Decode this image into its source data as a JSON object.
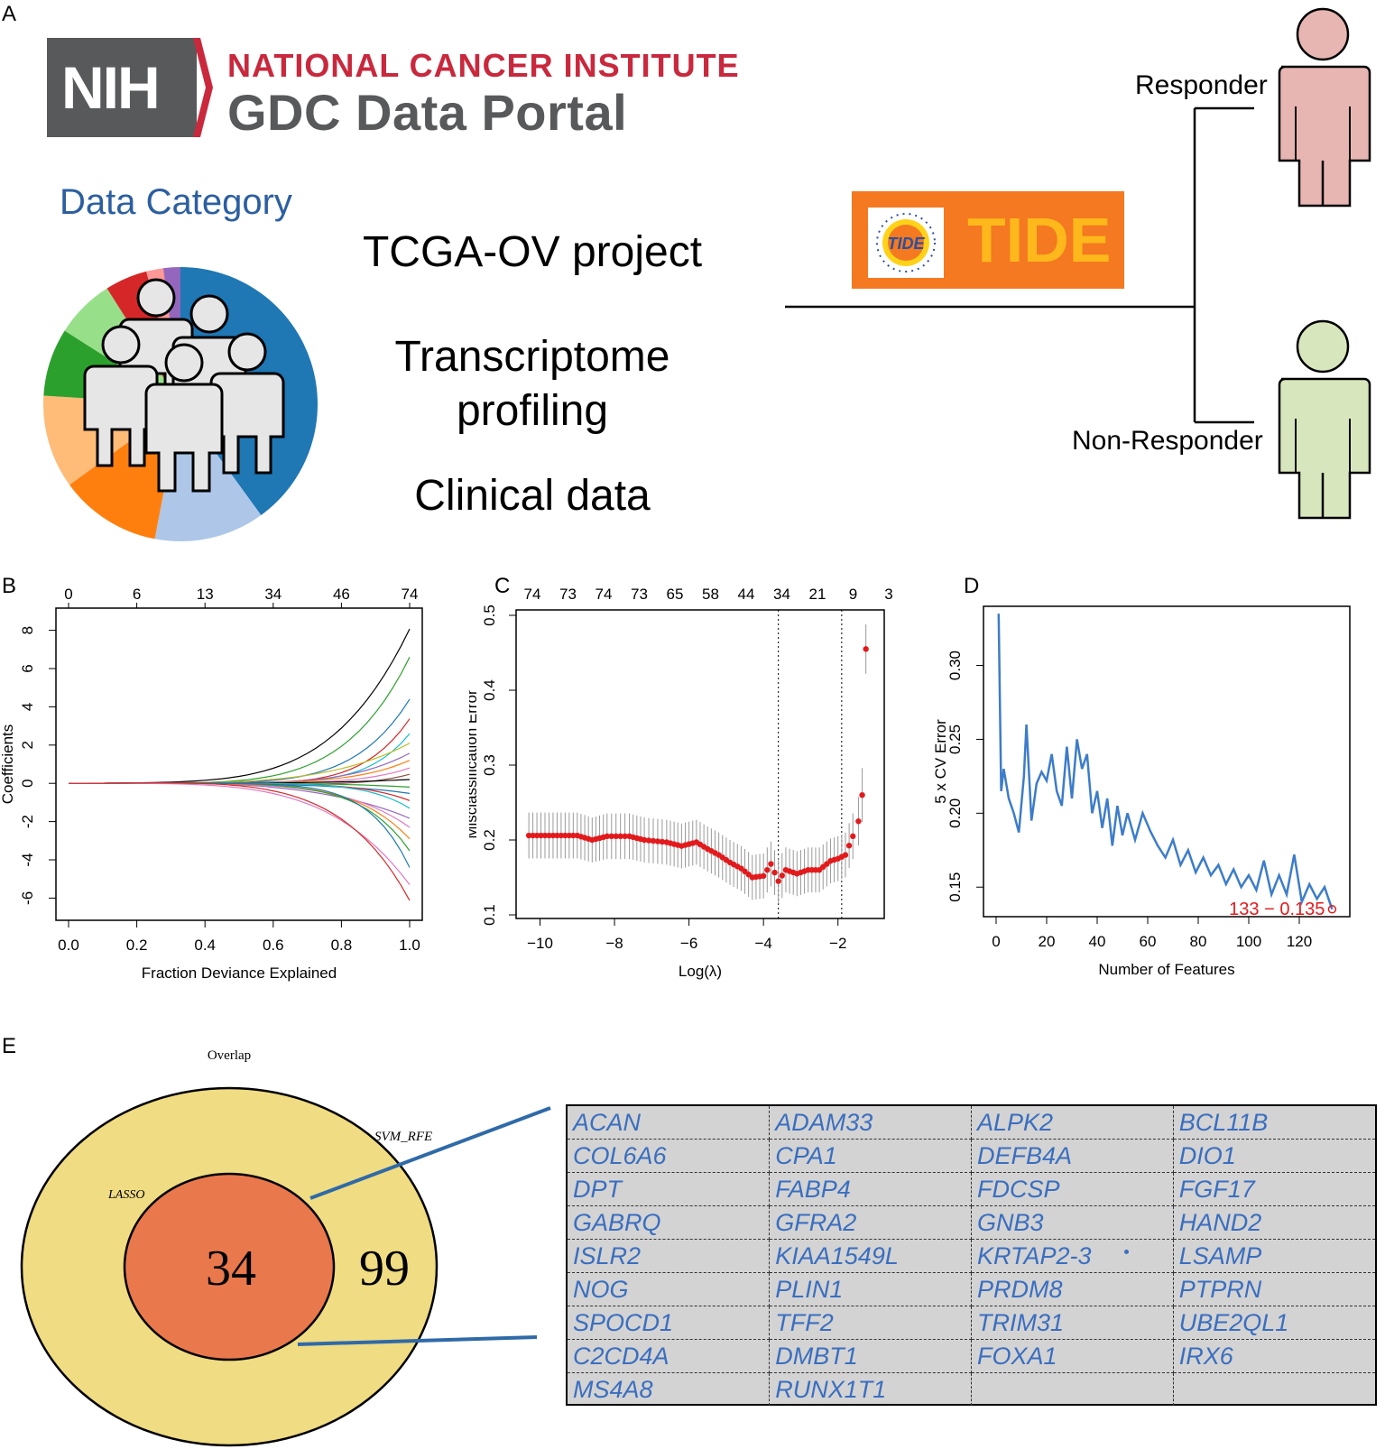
{
  "panels": {
    "a": "A",
    "b": "B",
    "c": "C",
    "d": "D",
    "e": "E"
  },
  "nih": {
    "box_text": "NIH",
    "line1": "NATIONAL CANCER INSTITUTE",
    "line2": "GDC Data Portal"
  },
  "data_category": "Data Category",
  "pie_colors": [
    "#1f77b4",
    "#aec7e8",
    "#ff7f0e",
    "#ffbb78",
    "#2ca02c",
    "#98df8a",
    "#d62728",
    "#ff9896",
    "#9467bd"
  ],
  "center": {
    "t1": "TCGA-OV project",
    "t2a": "Transcriptome",
    "t2b": "profiling",
    "t3": "Clinical data"
  },
  "tide": {
    "logo": "TIDE",
    "word": "TIDE"
  },
  "responders": {
    "responder": "Responder",
    "non_responder": "Non-Responder"
  },
  "chart_data": [
    {
      "type": "line",
      "panel": "B",
      "xlabel": "Fraction Deviance Explained",
      "ylabel": "Coefficients",
      "x_ticks": [
        "0.0",
        "0.2",
        "0.4",
        "0.6",
        "0.8",
        "1.0"
      ],
      "y_ticks": [
        "-6",
        "-4",
        "-2",
        "0",
        "2",
        "4",
        "6",
        "8"
      ],
      "top_ticks": [
        "0",
        "6",
        "13",
        "34",
        "46",
        "74"
      ],
      "xlim": [
        0,
        1
      ],
      "ylim": [
        -6.5,
        8.5
      ],
      "series_endpoints": [
        8.1,
        6.6,
        4.4,
        3.4,
        2.6,
        2.1,
        1.6,
        1.2,
        0.8,
        0.5,
        0.2,
        -0.2,
        -0.5,
        -0.9,
        -1.3,
        -1.8,
        -2.3,
        -2.9,
        -3.5,
        -4.4,
        -5.3,
        -6.1
      ]
    },
    {
      "type": "scatter",
      "panel": "C",
      "xlabel": "Log(λ)",
      "ylabel": "Misclassification Error",
      "x_ticks": [
        "−10",
        "−8",
        "−6",
        "−4",
        "−2"
      ],
      "y_ticks": [
        "0.1",
        "0.2",
        "0.3",
        "0.4",
        "0.5"
      ],
      "top_ticks": [
        "74",
        "73",
        "74",
        "73",
        "65",
        "58",
        "44",
        "34",
        "21",
        "9",
        "3"
      ],
      "xlim": [
        -10.4,
        -1
      ],
      "ylim": [
        0.1,
        0.5
      ],
      "vlines": [
        -3.6,
        -1.9
      ],
      "points": [
        [
          -10.3,
          0.206
        ],
        [
          -9.0,
          0.206
        ],
        [
          -8.6,
          0.2
        ],
        [
          -8.2,
          0.205
        ],
        [
          -7.6,
          0.205
        ],
        [
          -7.2,
          0.2
        ],
        [
          -6.6,
          0.197
        ],
        [
          -6.2,
          0.192
        ],
        [
          -5.8,
          0.197
        ],
        [
          -5.5,
          0.188
        ],
        [
          -5.2,
          0.18
        ],
        [
          -4.9,
          0.17
        ],
        [
          -4.6,
          0.162
        ],
        [
          -4.3,
          0.15
        ],
        [
          -4.0,
          0.152
        ],
        [
          -3.8,
          0.168
        ],
        [
          -3.6,
          0.145
        ],
        [
          -3.4,
          0.16
        ],
        [
          -3.1,
          0.155
        ],
        [
          -2.8,
          0.16
        ],
        [
          -2.5,
          0.16
        ],
        [
          -2.2,
          0.172
        ],
        [
          -2.0,
          0.175
        ],
        [
          -1.8,
          0.18
        ],
        [
          -1.6,
          0.205
        ],
        [
          -1.45,
          0.225
        ],
        [
          -1.35,
          0.26
        ],
        [
          -1.25,
          0.455
        ]
      ]
    },
    {
      "type": "line",
      "panel": "D",
      "xlabel": "Number of Features",
      "ylabel": "5 x CV Error",
      "x_ticks": [
        "0",
        "20",
        "40",
        "60",
        "80",
        "100",
        "120"
      ],
      "y_ticks": [
        "0.15",
        "0.20",
        "0.25",
        "0.30"
      ],
      "xlim": [
        -5,
        140
      ],
      "ylim": [
        0.13,
        0.34
      ],
      "annotation": "133 − 0.135",
      "x": [
        1,
        2,
        3,
        5,
        7,
        9,
        11,
        12,
        14,
        16,
        18,
        20,
        22,
        24,
        26,
        28,
        30,
        32,
        34,
        36,
        38,
        40,
        42,
        44,
        46,
        48,
        50,
        52,
        55,
        58,
        61,
        64,
        67,
        70,
        73,
        76,
        79,
        82,
        85,
        88,
        91,
        94,
        97,
        100,
        103,
        106,
        109,
        112,
        115,
        118,
        121,
        124,
        127,
        130,
        133
      ],
      "y": [
        0.335,
        0.215,
        0.23,
        0.21,
        0.2,
        0.187,
        0.225,
        0.26,
        0.195,
        0.22,
        0.228,
        0.222,
        0.24,
        0.215,
        0.205,
        0.245,
        0.21,
        0.25,
        0.23,
        0.24,
        0.2,
        0.215,
        0.19,
        0.21,
        0.178,
        0.205,
        0.185,
        0.2,
        0.182,
        0.2,
        0.188,
        0.178,
        0.17,
        0.182,
        0.165,
        0.175,
        0.16,
        0.17,
        0.158,
        0.165,
        0.152,
        0.162,
        0.15,
        0.158,
        0.148,
        0.168,
        0.145,
        0.158,
        0.145,
        0.172,
        0.14,
        0.152,
        0.142,
        0.15,
        0.135
      ]
    }
  ],
  "venn": {
    "overlap_label": "Overlap",
    "svm_label": "SVM_RFE",
    "lasso_label": "LASSO",
    "inner_count": "34",
    "outer_count": "99"
  },
  "genes": [
    [
      "ACAN",
      "ADAM33",
      "ALPK2",
      "BCL11B"
    ],
    [
      "COL6A6",
      "CPA1",
      "DEFB4A",
      "DIO1"
    ],
    [
      "DPT",
      "FABP4",
      "FDCSP",
      "FGF17"
    ],
    [
      "GABRQ",
      "GFRA2",
      "GNB3",
      "HAND2"
    ],
    [
      "ISLR2",
      "KIAA1549L",
      "KRTAP2-3",
      "LSAMP"
    ],
    [
      "NOG",
      "PLIN1",
      "PRDM8",
      "PTPRN"
    ],
    [
      "SPOCD1",
      "TFF2",
      "TRIM31",
      "UBE2QL1"
    ],
    [
      "C2CD4A",
      "DMBT1",
      "FOXA1",
      "IRX6"
    ],
    [
      "MS4A8",
      "RUNX1T1",
      "",
      ""
    ]
  ]
}
